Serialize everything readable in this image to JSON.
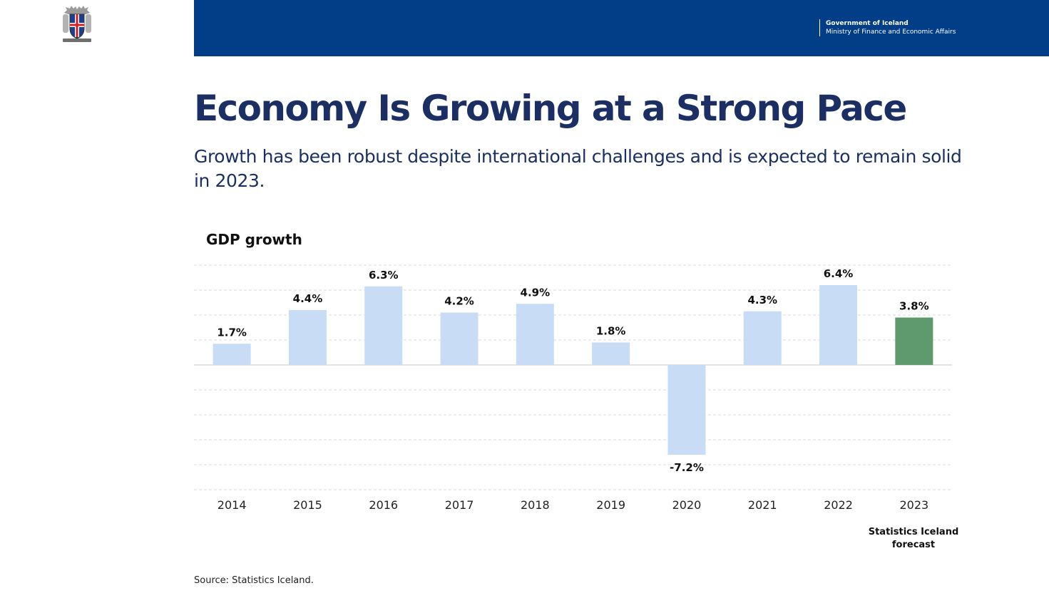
{
  "header": {
    "org_name": "Government of Iceland",
    "ministry": "Ministry of Finance and Economic Affairs",
    "bar_color": "#023e87",
    "crest_icon": "icelandic-coat-of-arms-icon"
  },
  "slide": {
    "title": "Economy Is Growing at a Strong Pace",
    "subtitle": "Growth has been robust despite international challenges and is expected to remain solid in 2023."
  },
  "chart_data": {
    "type": "bar",
    "title": "GDP growth",
    "categories": [
      "2014",
      "2015",
      "2016",
      "2017",
      "2018",
      "2019",
      "2020",
      "2021",
      "2022",
      "2023"
    ],
    "values": [
      1.7,
      4.4,
      6.3,
      4.2,
      4.9,
      1.8,
      -7.2,
      4.3,
      6.4,
      3.8
    ],
    "value_labels": [
      "1.7%",
      "4.4%",
      "6.3%",
      "4.2%",
      "4.9%",
      "1.8%",
      "-7.2%",
      "4.3%",
      "6.4%",
      "3.8%"
    ],
    "ylim": [
      -10,
      8
    ],
    "grid": true,
    "bar_color": "#c8ddf5",
    "forecast_color": "#5e9a6e",
    "forecast_category": "2023",
    "forecast_note": "Statistics Iceland forecast"
  },
  "footer": {
    "source": "Source: Statistics Iceland."
  }
}
